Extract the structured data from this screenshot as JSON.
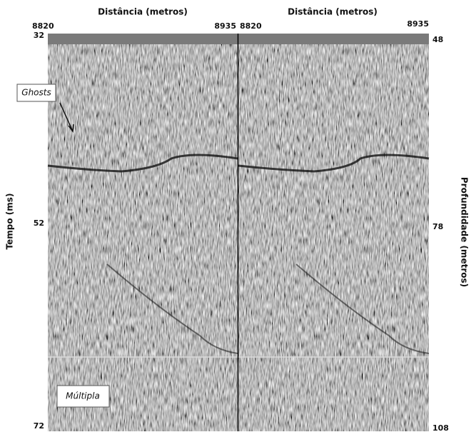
{
  "left_panel": {
    "title": "Distância (metros)",
    "x_start": 8820,
    "x_end": 8935,
    "y_axis_label": "Tempo (ms)",
    "y_ticks": [
      32,
      52,
      72
    ]
  },
  "right_panel": {
    "title": "Distância (metros)",
    "x_start": 8820,
    "x_end": 8935,
    "y_axis_label": "Profundidade (metros)",
    "y_ticks": [
      48,
      78,
      108
    ]
  },
  "annotations": {
    "ghosts": "Ghosts",
    "multiple": "Múltipla"
  }
}
